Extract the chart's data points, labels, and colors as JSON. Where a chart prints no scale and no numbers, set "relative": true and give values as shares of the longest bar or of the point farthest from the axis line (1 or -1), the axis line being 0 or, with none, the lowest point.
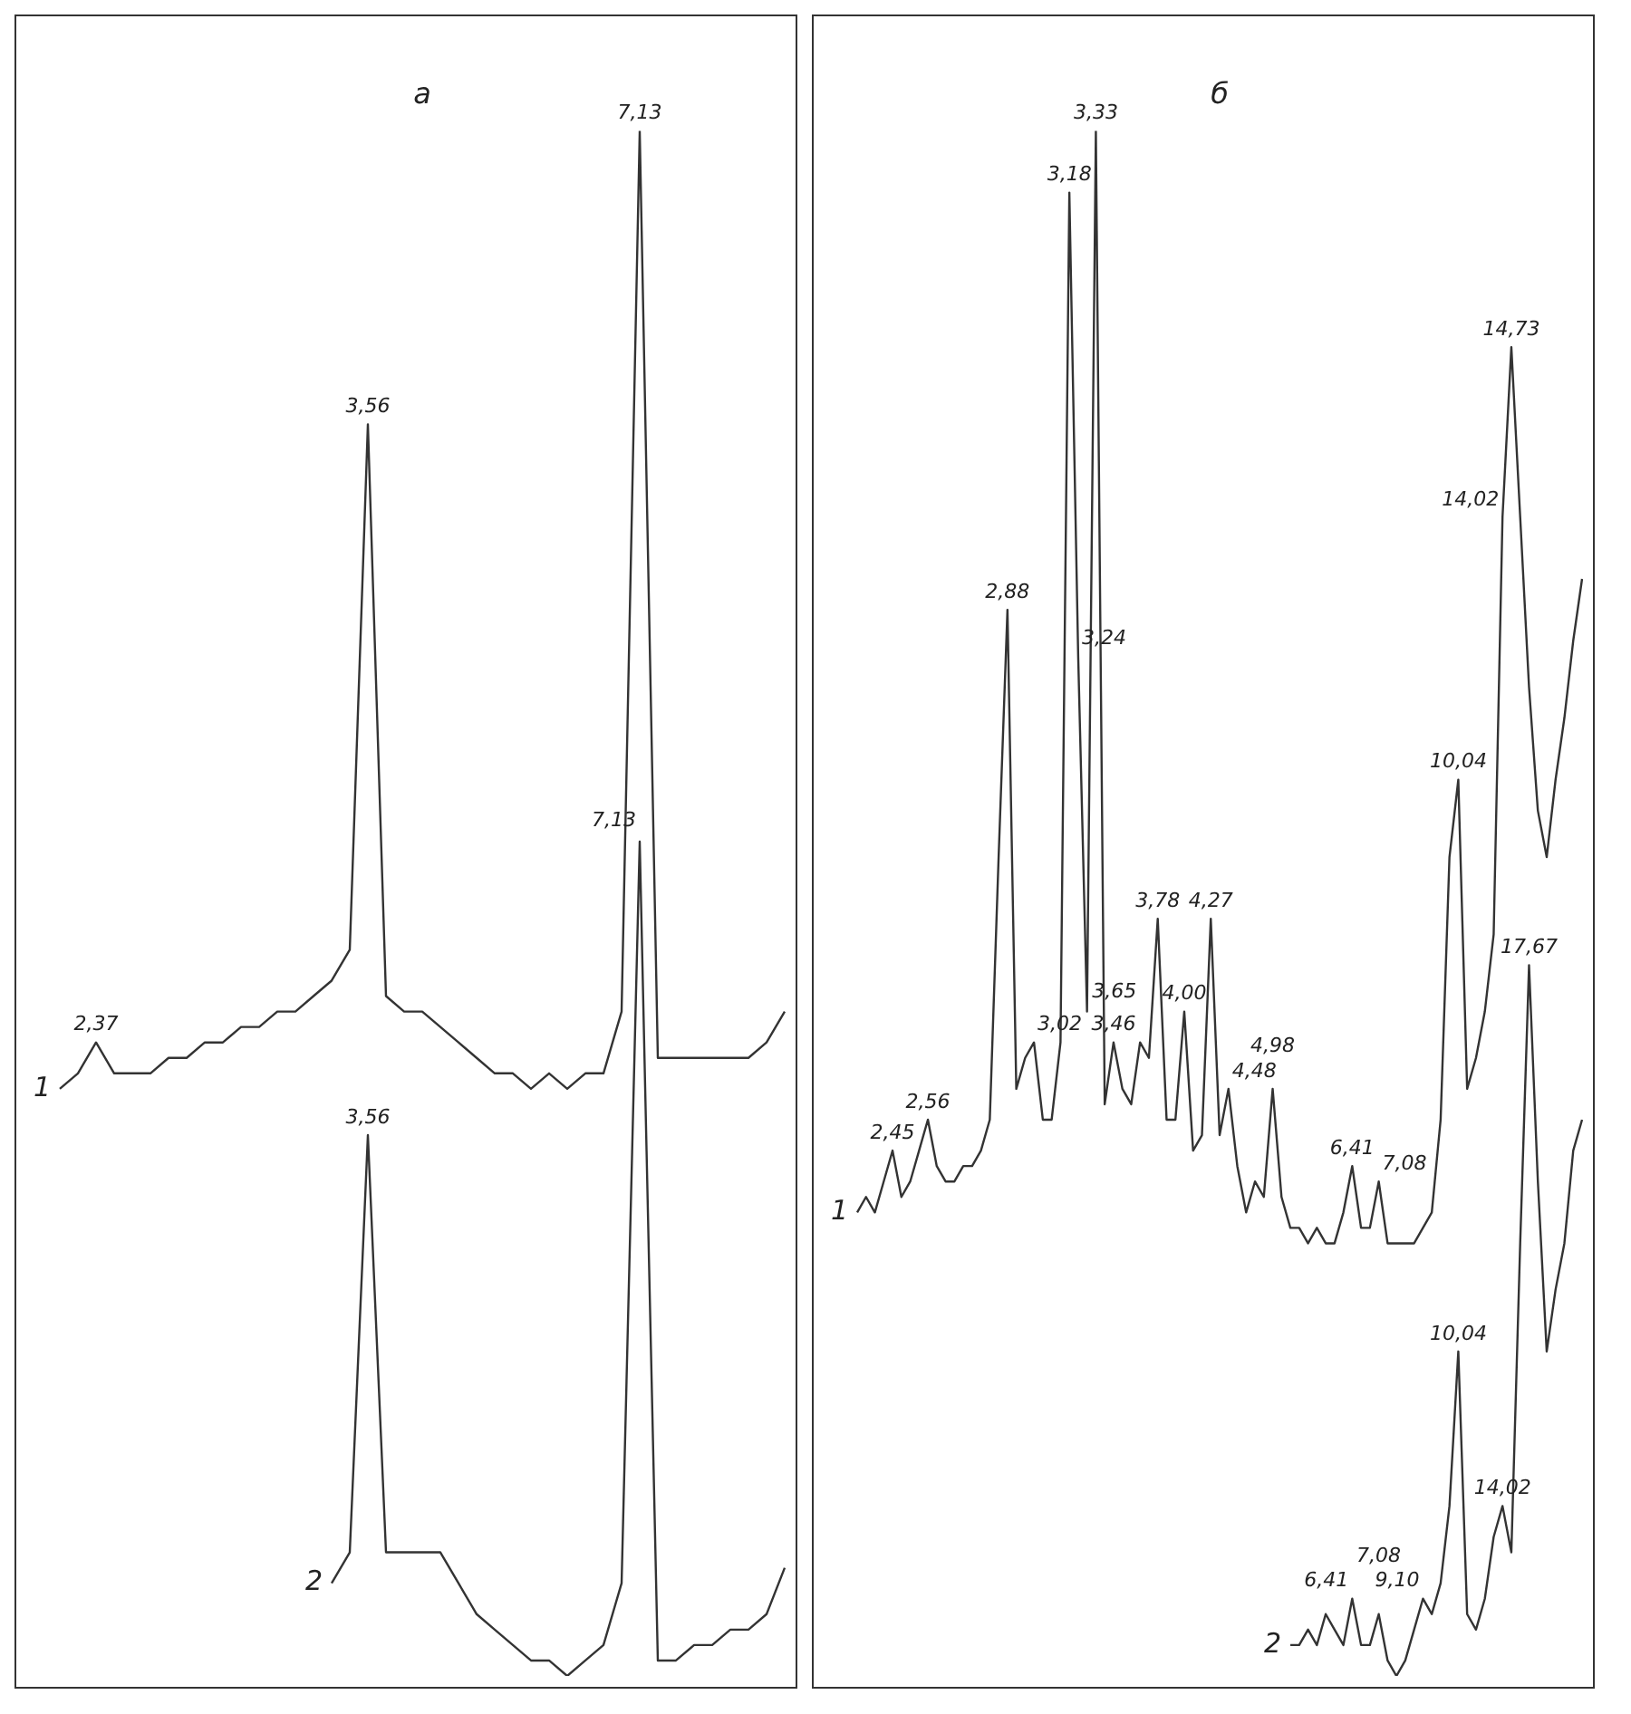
{
  "chart_data": [
    {
      "type": "line",
      "title": "а",
      "relative": true,
      "marker": "none",
      "tick_labels": false,
      "categories": [
        null,
        null,
        "2,37",
        null,
        null,
        null,
        null,
        null,
        null,
        null,
        null,
        null,
        null,
        null,
        null,
        null,
        null,
        "3,56",
        null,
        null,
        null,
        null,
        null,
        null,
        null,
        null,
        null,
        null,
        null,
        null,
        null,
        null,
        "7,13",
        null,
        null,
        null,
        null,
        null,
        null,
        null,
        null
      ],
      "series": [
        {
          "name": "1",
          "color": "#333333",
          "values": [
            0.38,
            0.39,
            0.41,
            0.39,
            0.39,
            0.39,
            0.4,
            0.4,
            0.41,
            0.41,
            0.42,
            0.42,
            0.43,
            0.43,
            0.44,
            0.45,
            0.47,
            0.81,
            0.44,
            0.43,
            0.43,
            0.42,
            0.41,
            0.4,
            0.39,
            0.39,
            0.38,
            0.39,
            0.38,
            0.39,
            0.39,
            0.43,
            1,
            0.4,
            0.4,
            0.4,
            0.4,
            0.4,
            0.4,
            0.41,
            0.43
          ]
        },
        {
          "name": "2",
          "color": "#333333",
          "values": [
            null,
            null,
            null,
            null,
            null,
            null,
            null,
            null,
            null,
            null,
            null,
            null,
            null,
            null,
            null,
            0.06,
            0.08,
            0.35,
            0.08,
            0.08,
            0.08,
            0.08,
            0.06,
            0.04,
            0.03,
            0.02,
            0.01,
            0.01,
            0,
            0.01,
            0.02,
            0.06,
            0.54,
            0.01,
            0.01,
            0.02,
            0.02,
            0.03,
            0.03,
            0.04,
            0.07
          ]
        }
      ],
      "annotations": [
        {
          "text": "3,56",
          "x": "3,56",
          "y": 0.35
        },
        {
          "text": "7,13",
          "x": "7,13",
          "y": 0.54
        }
      ]
    },
    {
      "type": "line",
      "title": "б",
      "relative": true,
      "marker": "none",
      "tick_labels": false,
      "categories": [
        null,
        null,
        null,
        null,
        "2,45",
        null,
        null,
        null,
        "2,56",
        null,
        null,
        null,
        null,
        null,
        null,
        null,
        null,
        "2,88",
        null,
        null,
        "3,02",
        null,
        null,
        null,
        "3,18",
        "3,24",
        null,
        "3,33",
        null,
        "3,46",
        null,
        null,
        "3,65",
        null,
        "3,78",
        null,
        null,
        "4,00",
        null,
        null,
        "4,27",
        null,
        "4,48",
        null,
        null,
        null,
        null,
        "4,98",
        null,
        null,
        null,
        null,
        null,
        null,
        null,
        null,
        "6,41",
        null,
        null,
        "7,08",
        null,
        null,
        null,
        null,
        "9,10",
        null,
        null,
        null,
        "10,04",
        null,
        null,
        null,
        null,
        "14,02",
        "14,73",
        null,
        "17,67",
        null,
        null,
        null,
        null,
        null,
        null
      ],
      "series": [
        {
          "name": "1",
          "color": "#333333",
          "values": [
            0.3,
            0.31,
            0.3,
            0.32,
            0.34,
            0.31,
            0.32,
            0.34,
            0.36,
            0.33,
            0.32,
            0.32,
            0.33,
            0.33,
            0.34,
            0.36,
            0.53,
            0.69,
            0.38,
            0.4,
            0.41,
            0.36,
            0.36,
            0.41,
            0.96,
            0.66,
            0.43,
            1,
            0.37,
            0.41,
            0.38,
            0.37,
            0.41,
            0.4,
            0.49,
            0.36,
            0.36,
            0.43,
            0.34,
            0.35,
            0.49,
            0.35,
            0.38,
            0.33,
            0.3,
            0.32,
            0.31,
            0.38,
            0.31,
            0.29,
            0.29,
            0.28,
            0.29,
            0.28,
            0.28,
            0.3,
            0.33,
            0.29,
            0.29,
            0.32,
            0.28,
            0.28,
            0.28,
            0.28,
            0.29,
            0.3,
            0.36,
            0.53,
            0.58,
            0.38,
            0.4,
            0.43,
            0.48,
            0.75,
            0.86,
            0.75,
            0.64,
            0.56,
            0.53,
            0.58,
            0.62,
            0.67,
            0.71
          ]
        },
        {
          "name": "2",
          "color": "#333333",
          "values": [
            null,
            null,
            null,
            null,
            null,
            null,
            null,
            null,
            null,
            null,
            null,
            null,
            null,
            null,
            null,
            null,
            null,
            null,
            null,
            null,
            null,
            null,
            null,
            null,
            null,
            null,
            null,
            null,
            null,
            null,
            null,
            null,
            null,
            null,
            null,
            null,
            null,
            null,
            null,
            null,
            null,
            null,
            null,
            null,
            null,
            null,
            null,
            null,
            null,
            0.02,
            0.02,
            0.03,
            0.02,
            0.04,
            0.03,
            0.02,
            0.05,
            0.02,
            0.02,
            0.04,
            0.01,
            0,
            0.01,
            0.03,
            0.05,
            0.04,
            0.06,
            0.11,
            0.21,
            0.04,
            0.03,
            0.05,
            0.09,
            0.11,
            0.08,
            0.28,
            0.46,
            0.32,
            0.21,
            0.25,
            0.28,
            0.34,
            0.36
          ]
        }
      ],
      "annotations": [
        {
          "text": "14,02",
          "x": "14,02",
          "y": 0.75
        },
        {
          "text": "6,41",
          "x": "6,41",
          "y": 0.05
        },
        {
          "text": "7,08",
          "x": "7,08",
          "y": 0.04
        },
        {
          "text": "10,04",
          "x": "10,04",
          "y": 0.21
        }
      ]
    }
  ]
}
